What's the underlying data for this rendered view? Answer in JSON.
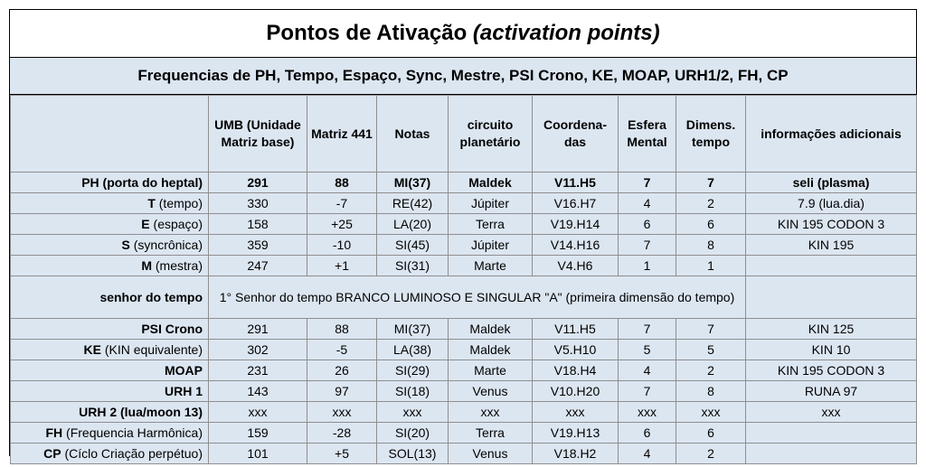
{
  "title_main": "Pontos de Ativação",
  "title_italic": "(activation points)",
  "subtitle": "Frequencias de PH, Tempo, Espaço, Sync, Mestre, PSI Crono, KE, MOAP, URH1/2, FH, CP",
  "headers": {
    "label": "",
    "umb": "UMB (Unidade Matriz base)",
    "matriz": "Matriz 441",
    "notas": "Notas",
    "circuito": "circuito planetário",
    "coordenadas": "Coordena-das",
    "esfera": "Esfera Mental",
    "dimens": "Dimens. tempo",
    "info": "informações adicionais"
  },
  "rows": {
    "ph": {
      "label_bold": "PH (porta do heptal)",
      "label_rest": "",
      "umb": "291",
      "matriz": "88",
      "notas": "MI(37)",
      "circuito": "Maldek",
      "coord": "V11.H5",
      "esfera": "7",
      "dimens": "7",
      "info": "seli (plasma)"
    },
    "t": {
      "label_bold": "T",
      "label_rest": " (tempo)",
      "umb": "330",
      "matriz": "-7",
      "notas": "RE(42)",
      "circuito": "Júpiter",
      "coord": "V16.H7",
      "esfera": "4",
      "dimens": "2",
      "info": "7.9 (lua.dia)"
    },
    "e": {
      "label_bold": "E",
      "label_rest": " (espaço)",
      "umb": "158",
      "matriz": "+25",
      "notas": "LA(20)",
      "circuito": "Terra",
      "coord": "V19.H14",
      "esfera": "6",
      "dimens": "6",
      "info": "KIN 195 CODON 3"
    },
    "s": {
      "label_bold": "S",
      "label_rest": " (syncrônica)",
      "umb": "359",
      "matriz": "-10",
      "notas": "SI(45)",
      "circuito": "Júpiter",
      "coord": "V14.H16",
      "esfera": "7",
      "dimens": "8",
      "info": "KIN 195"
    },
    "m": {
      "label_bold": "M",
      "label_rest": " (mestra)",
      "umb": "247",
      "matriz": "+1",
      "notas": "SI(31)",
      "circuito": "Marte",
      "coord": "V4.H6",
      "esfera": "1",
      "dimens": "1",
      "info": ""
    },
    "senhor": {
      "label": "senhor do tempo",
      "text": "1° Senhor do tempo BRANCO LUMINOSO E SINGULAR \"A\" (primeira dimensão do tempo)"
    },
    "psi": {
      "label_bold": "PSI Crono",
      "label_rest": "",
      "umb": "291",
      "matriz": "88",
      "notas": "MI(37)",
      "circuito": "Maldek",
      "coord": "V11.H5",
      "esfera": "7",
      "dimens": "7",
      "info": "KIN 125"
    },
    "ke": {
      "label_bold": "KE",
      "label_rest": " (KIN equivalente)",
      "umb": "302",
      "matriz": "-5",
      "notas": "LA(38)",
      "circuito": "Maldek",
      "coord": "V5.H10",
      "esfera": "5",
      "dimens": "5",
      "info": "KIN 10"
    },
    "moap": {
      "label_bold": "MOAP",
      "label_rest": "",
      "umb": "231",
      "matriz": "26",
      "notas": "SI(29)",
      "circuito": "Marte",
      "coord": "V18.H4",
      "esfera": "4",
      "dimens": "2",
      "info": "KIN 195 CODON 3"
    },
    "urh1": {
      "label_bold": "URH 1",
      "label_rest": "",
      "umb": "143",
      "matriz": "97",
      "notas": "SI(18)",
      "circuito": "Venus",
      "coord": "V10.H20",
      "esfera": "7",
      "dimens": "8",
      "info": "RUNA 97"
    },
    "urh2": {
      "label_bold": "URH 2 (lua/moon 13)",
      "label_rest": "",
      "umb": "xxx",
      "matriz": "xxx",
      "notas": "xxx",
      "circuito": "xxx",
      "coord": "xxx",
      "esfera": "xxx",
      "dimens": "xxx",
      "info": "xxx"
    },
    "fh": {
      "label_bold": "FH",
      "label_rest": " (Frequencia Harmônica)",
      "umb": "159",
      "matriz": "-28",
      "notas": "SI(20)",
      "circuito": "Terra",
      "coord": "V19.H13",
      "esfera": "6",
      "dimens": "6",
      "info": ""
    },
    "cp": {
      "label_bold": "CP",
      "label_rest": " (Cíclo Criação perpétuo)",
      "umb": "101",
      "matriz": "+5",
      "notas": "SOL(13)",
      "circuito": "Venus",
      "coord": "V18.H2",
      "esfera": "4",
      "dimens": "2",
      "info": ""
    }
  }
}
